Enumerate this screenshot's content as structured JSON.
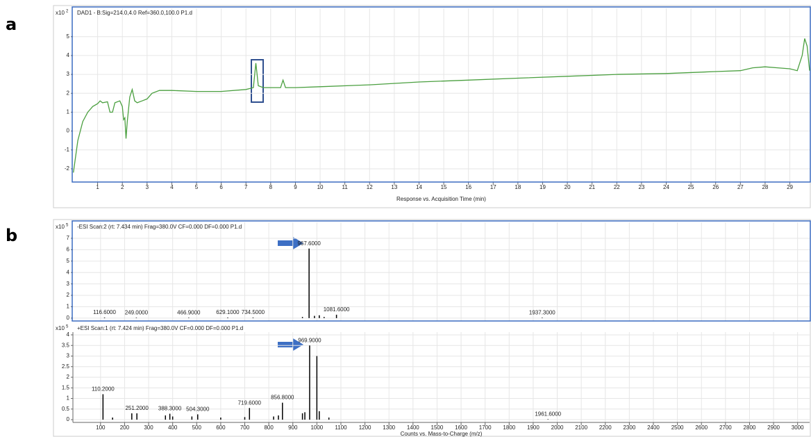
{
  "panel_labels": [
    "a",
    "b"
  ],
  "chart_data": [
    {
      "type": "line",
      "title": "DAD1 - B:Sig=214.0,4.0  Ref=360.0,100.0 P1.d",
      "y_multiplier": "x10",
      "y_exponent": "2",
      "x_label": "Response vs. Acquisition Time (min)",
      "xlim": [
        0,
        29.8
      ],
      "xticks": [
        1,
        2,
        3,
        4,
        5,
        6,
        7,
        8,
        9,
        10,
        11,
        12,
        13,
        14,
        15,
        16,
        17,
        18,
        19,
        20,
        21,
        22,
        23,
        24,
        25,
        26,
        27,
        28,
        29
      ],
      "ylim": [
        -2.7,
        6.5
      ],
      "yticks": [
        -2,
        -1,
        0,
        1,
        2,
        3,
        4,
        5
      ],
      "grid": true,
      "color": "#4a9f3f",
      "x": [
        0.02,
        0.2,
        0.4,
        0.6,
        0.8,
        1.0,
        1.1,
        1.2,
        1.4,
        1.5,
        1.6,
        1.7,
        1.9,
        2.0,
        2.05,
        2.1,
        2.15,
        2.2,
        2.3,
        2.4,
        2.5,
        2.6,
        2.8,
        3.0,
        3.2,
        3.5,
        4,
        5,
        6,
        7,
        7.3,
        7.4,
        7.5,
        7.7,
        8.4,
        8.5,
        8.6,
        9,
        10,
        12,
        14,
        16,
        18,
        20,
        22,
        24,
        26,
        27,
        27.5,
        28,
        28.5,
        29,
        29.3,
        29.5,
        29.6,
        29.7,
        29.8
      ],
      "values": [
        -2.2,
        -0.5,
        0.5,
        1.0,
        1.3,
        1.45,
        1.6,
        1.5,
        1.55,
        1.0,
        1.0,
        1.5,
        1.6,
        1.3,
        0.6,
        0.7,
        -0.4,
        0.5,
        1.8,
        2.2,
        1.6,
        1.5,
        1.6,
        1.7,
        2.0,
        2.15,
        2.15,
        2.1,
        2.1,
        2.2,
        2.3,
        3.6,
        2.4,
        2.3,
        2.3,
        2.7,
        2.3,
        2.3,
        2.35,
        2.45,
        2.6,
        2.7,
        2.8,
        2.9,
        3.0,
        3.05,
        3.15,
        3.2,
        3.35,
        3.4,
        3.35,
        3.3,
        3.2,
        4.0,
        4.9,
        4.5,
        3.2
      ]
    },
    {
      "type": "stem",
      "title": "-ESI Scan:2 (rt: 7.434 min) Frag=380.0V CF=0.000 DF=0.000 P1.d",
      "y_multiplier": "x10",
      "y_exponent": "5",
      "xlim": [
        -15,
        3050
      ],
      "ylim": [
        -0.25,
        8.4
      ],
      "yticks": [
        0,
        1,
        2,
        3,
        4,
        5,
        6,
        7
      ],
      "grid": true,
      "color": "#000000",
      "x": [
        116.6,
        249,
        466.9,
        629.1,
        734.5,
        940,
        967.6,
        990,
        1010,
        1030,
        1081.6,
        1937.3
      ],
      "values": [
        0.05,
        0.04,
        0.04,
        0.05,
        0.05,
        0.1,
        6.1,
        0.2,
        0.25,
        0.1,
        0.3,
        0.04
      ],
      "peak_labels": [
        "116.6000",
        "249.0000",
        "466.9000",
        "629.1000",
        "734.5000",
        null,
        "967.6000",
        null,
        null,
        null,
        "1081.6000",
        "1937.3000"
      ]
    },
    {
      "type": "stem",
      "title": "+ESI Scan:1 (rt: 7.424 min) Frag=380.0V CF=0.000 DF=0.000 P1.d",
      "y_multiplier": "x10",
      "y_exponent": "5",
      "x_label": "Counts vs. Mass-to-Charge (m/z)",
      "xlim": [
        -15,
        3050
      ],
      "xticks": [
        100,
        200,
        300,
        400,
        500,
        600,
        700,
        800,
        900,
        1000,
        1100,
        1200,
        1300,
        1400,
        1500,
        1600,
        1700,
        1800,
        1900,
        2000,
        2100,
        2200,
        2300,
        2400,
        2500,
        2600,
        2700,
        2800,
        2900,
        3000
      ],
      "ylim": [
        -0.13,
        4.13
      ],
      "yticks": [
        0,
        0.5,
        1,
        1.5,
        2,
        2.5,
        3,
        3.5,
        4
      ],
      "grid": true,
      "color": "#000000",
      "x": [
        110.2,
        150,
        230,
        251.2,
        370,
        388.3,
        400,
        480,
        504.3,
        600,
        700,
        719.6,
        820,
        840,
        856.8,
        940,
        950,
        969.9,
        1000,
        1010,
        1050,
        1961.6
      ],
      "values": [
        1.2,
        0.1,
        0.3,
        0.3,
        0.2,
        0.28,
        0.15,
        0.15,
        0.25,
        0.1,
        0.12,
        0.55,
        0.15,
        0.2,
        0.8,
        0.3,
        0.35,
        3.5,
        3.0,
        0.4,
        0.1,
        0.02
      ],
      "peak_labels": [
        "110.2000",
        null,
        null,
        "251.2000",
        null,
        "388.3000",
        null,
        null,
        "504.3000",
        null,
        null,
        "719.6000",
        null,
        null,
        "856.8000",
        null,
        null,
        "969.9000",
        null,
        null,
        null,
        "1961.6000"
      ]
    }
  ]
}
